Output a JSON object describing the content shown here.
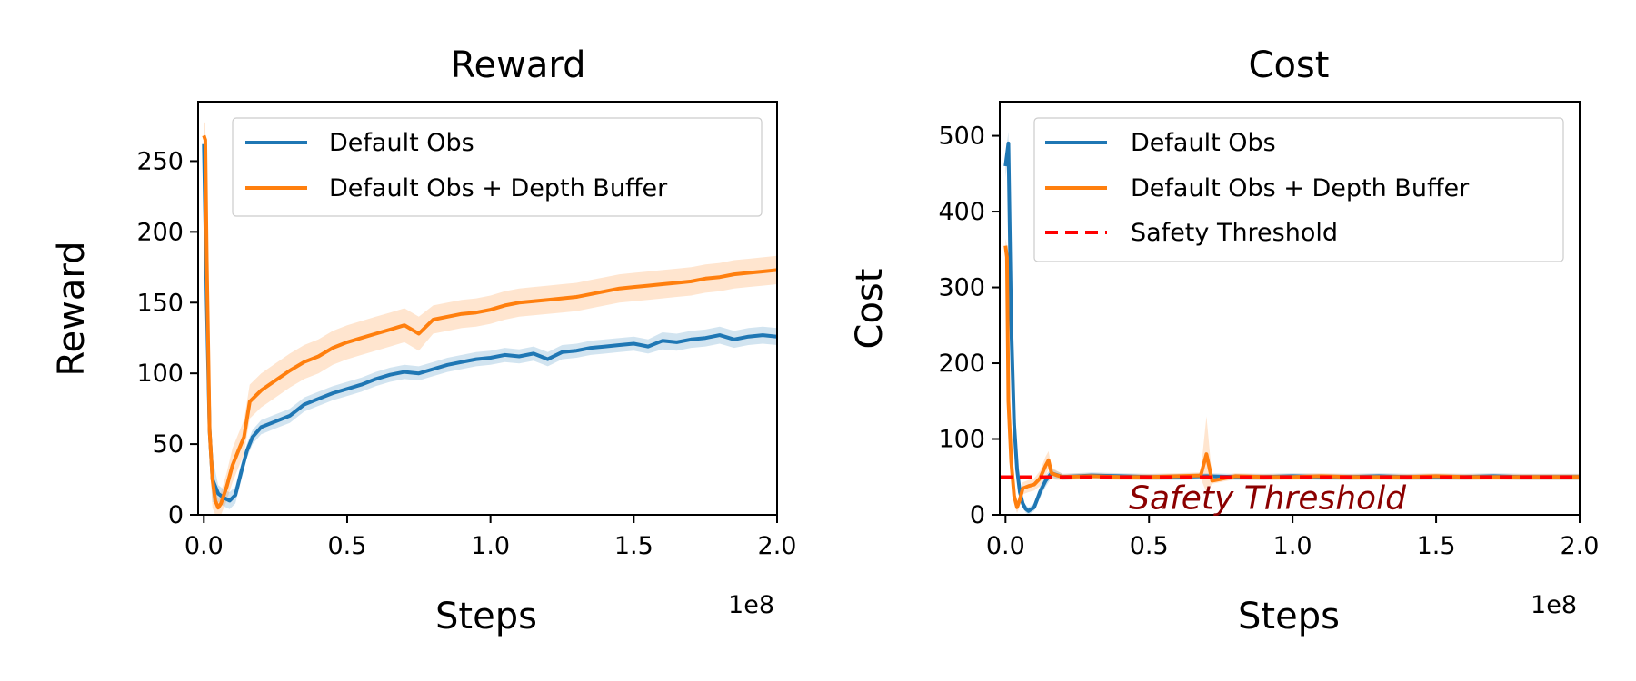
{
  "colors": {
    "blue": "#1f77b4",
    "orange": "#ff7f0e",
    "threshold": "#ff0000",
    "annotation": "#8b0000"
  },
  "chart_data": [
    {
      "type": "line",
      "title": "Reward",
      "xlabel": "Steps",
      "ylabel": "Reward",
      "x_offset_label": "1e8",
      "xlim": [
        -0.02,
        2.0
      ],
      "ylim": [
        0,
        292
      ],
      "xticks": [
        0,
        0.5,
        1.0,
        1.5,
        2.0
      ],
      "xtick_labels": [
        "0.0",
        "0.5",
        "1.0",
        "1.5",
        "2.0"
      ],
      "yticks": [
        0,
        50,
        100,
        150,
        200,
        250
      ],
      "ytick_labels": [
        "0",
        "50",
        "100",
        "150",
        "200",
        "250"
      ],
      "grid": false,
      "legend_position": "upper-right",
      "series": [
        {
          "name": "Default Obs",
          "color": "#1f77b4",
          "x": [
            0,
            0.01,
            0.02,
            0.03,
            0.05,
            0.07,
            0.09,
            0.11,
            0.13,
            0.15,
            0.17,
            0.2,
            0.25,
            0.3,
            0.35,
            0.4,
            0.45,
            0.5,
            0.55,
            0.6,
            0.65,
            0.7,
            0.75,
            0.8,
            0.85,
            0.9,
            0.95,
            1.0,
            1.05,
            1.1,
            1.15,
            1.2,
            1.25,
            1.3,
            1.35,
            1.4,
            1.45,
            1.5,
            1.55,
            1.6,
            1.65,
            1.7,
            1.75,
            1.8,
            1.85,
            1.9,
            1.95,
            2.0
          ],
          "y": [
            262,
            150,
            60,
            25,
            15,
            12,
            10,
            14,
            30,
            45,
            55,
            62,
            66,
            70,
            78,
            82,
            86,
            89,
            92,
            96,
            99,
            101,
            100,
            103,
            106,
            108,
            110,
            111,
            113,
            112,
            114,
            110,
            115,
            116,
            118,
            119,
            120,
            121,
            119,
            123,
            122,
            124,
            125,
            127,
            124,
            126,
            127,
            126
          ],
          "band": [
            10,
            12,
            14,
            16,
            6,
            6,
            6,
            6,
            6,
            5,
            5,
            5,
            5,
            5,
            5,
            5,
            5,
            5,
            5,
            5,
            5,
            5,
            5,
            5,
            5,
            5,
            5,
            5,
            5,
            5,
            5,
            5,
            5,
            5,
            5,
            5,
            5,
            5,
            5,
            6,
            6,
            6,
            6,
            6,
            6,
            6,
            6,
            6
          ]
        },
        {
          "name": "Default Obs + Depth Buffer",
          "color": "#ff7f0e",
          "x": [
            0,
            0.005,
            0.01,
            0.02,
            0.03,
            0.04,
            0.05,
            0.06,
            0.08,
            0.1,
            0.12,
            0.14,
            0.16,
            0.2,
            0.25,
            0.3,
            0.35,
            0.4,
            0.45,
            0.5,
            0.55,
            0.6,
            0.65,
            0.7,
            0.75,
            0.8,
            0.85,
            0.9,
            0.95,
            1.0,
            1.05,
            1.1,
            1.15,
            1.2,
            1.25,
            1.3,
            1.35,
            1.4,
            1.45,
            1.5,
            1.55,
            1.6,
            1.65,
            1.7,
            1.75,
            1.8,
            1.85,
            1.9,
            1.95,
            2.0
          ],
          "y": [
            268,
            265,
            180,
            60,
            25,
            10,
            5,
            8,
            20,
            35,
            45,
            55,
            80,
            88,
            95,
            102,
            108,
            112,
            118,
            122,
            125,
            128,
            131,
            134,
            128,
            138,
            140,
            142,
            143,
            145,
            148,
            150,
            151,
            152,
            153,
            154,
            156,
            158,
            160,
            161,
            162,
            163,
            164,
            165,
            167,
            168,
            170,
            171,
            172,
            173
          ],
          "band": [
            10,
            12,
            14,
            20,
            20,
            10,
            6,
            8,
            10,
            12,
            12,
            12,
            12,
            12,
            12,
            12,
            12,
            12,
            12,
            12,
            12,
            12,
            12,
            12,
            12,
            10,
            10,
            10,
            10,
            10,
            10,
            10,
            10,
            10,
            10,
            10,
            10,
            10,
            10,
            10,
            10,
            10,
            10,
            10,
            10,
            10,
            10,
            10,
            10,
            10
          ]
        }
      ]
    },
    {
      "type": "line",
      "title": "Cost",
      "xlabel": "Steps",
      "ylabel": "Cost",
      "x_offset_label": "1e8",
      "xlim": [
        -0.02,
        2.0
      ],
      "ylim": [
        0,
        545
      ],
      "xticks": [
        0,
        0.5,
        1.0,
        1.5,
        2.0
      ],
      "xtick_labels": [
        "0.0",
        "0.5",
        "1.0",
        "1.5",
        "2.0"
      ],
      "yticks": [
        0,
        100,
        200,
        300,
        400,
        500
      ],
      "ytick_labels": [
        "0",
        "100",
        "200",
        "300",
        "400",
        "500"
      ],
      "grid": false,
      "legend_position": "upper-right",
      "threshold": {
        "name": "Safety Threshold",
        "value": 50,
        "color": "#ff0000",
        "style": "dashed"
      },
      "annotation": {
        "text": "Safety Threshold",
        "x": 0.43,
        "y": 8,
        "color": "#8b0000"
      },
      "series": [
        {
          "name": "Default Obs",
          "color": "#1f77b4",
          "x": [
            0,
            0.01,
            0.02,
            0.03,
            0.04,
            0.05,
            0.06,
            0.07,
            0.08,
            0.1,
            0.12,
            0.14,
            0.16,
            0.2,
            0.3,
            0.4,
            0.5,
            0.6,
            0.7,
            0.8,
            0.9,
            1.0,
            1.1,
            1.2,
            1.3,
            1.4,
            1.5,
            1.6,
            1.7,
            1.8,
            1.9,
            2.0
          ],
          "y": [
            460,
            490,
            250,
            120,
            60,
            30,
            15,
            8,
            5,
            10,
            30,
            45,
            55,
            50,
            52,
            51,
            50,
            50,
            51,
            50,
            50,
            51,
            50,
            50,
            51,
            50,
            50,
            50,
            51,
            50,
            50,
            50
          ],
          "band": [
            15,
            15,
            20,
            15,
            10,
            8,
            5,
            5,
            5,
            5,
            8,
            8,
            6,
            4,
            4,
            4,
            4,
            4,
            4,
            4,
            4,
            4,
            4,
            4,
            4,
            4,
            4,
            4,
            4,
            4,
            4,
            4
          ]
        },
        {
          "name": "Default Obs + Depth Buffer",
          "color": "#ff7f0e",
          "x": [
            0,
            0.005,
            0.01,
            0.02,
            0.03,
            0.04,
            0.05,
            0.06,
            0.08,
            0.1,
            0.12,
            0.14,
            0.15,
            0.16,
            0.18,
            0.2,
            0.3,
            0.4,
            0.5,
            0.6,
            0.68,
            0.7,
            0.72,
            0.8,
            0.9,
            1.0,
            1.1,
            1.2,
            1.3,
            1.4,
            1.5,
            1.6,
            1.7,
            1.8,
            1.9,
            2.0
          ],
          "y": [
            355,
            340,
            150,
            70,
            25,
            10,
            20,
            35,
            38,
            40,
            48,
            65,
            72,
            55,
            52,
            50,
            51,
            50,
            50,
            51,
            52,
            80,
            45,
            51,
            50,
            50,
            51,
            50,
            50,
            50,
            51,
            50,
            50,
            50,
            50,
            50
          ],
          "band": [
            10,
            15,
            20,
            15,
            10,
            8,
            8,
            8,
            8,
            8,
            10,
            12,
            12,
            8,
            6,
            4,
            4,
            4,
            4,
            4,
            4,
            50,
            4,
            4,
            4,
            4,
            4,
            4,
            4,
            4,
            4,
            4,
            4,
            4,
            4,
            4
          ]
        },
        {
          "name": "Safety Threshold",
          "color": "#ff0000",
          "style": "dashed",
          "x": [
            -0.02,
            2.0
          ],
          "y": [
            50,
            50
          ]
        }
      ]
    }
  ]
}
